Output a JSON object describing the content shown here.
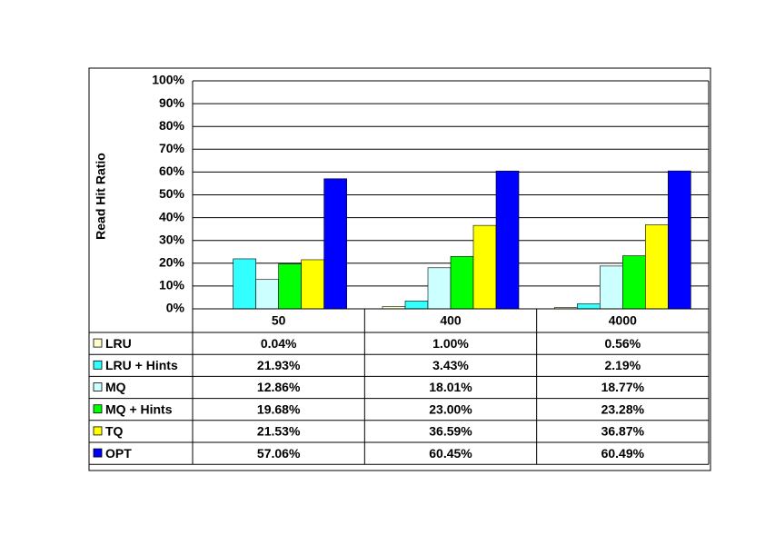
{
  "chart_data": {
    "type": "bar",
    "y_label": "Read Hit Ratio",
    "categories": [
      "50",
      "400",
      "4000"
    ],
    "ylim": [
      0,
      100
    ],
    "yticks": [
      {
        "value": 0,
        "label": "0%"
      },
      {
        "value": 10,
        "label": "10%"
      },
      {
        "value": 20,
        "label": "20%"
      },
      {
        "value": 30,
        "label": "30%"
      },
      {
        "value": 40,
        "label": "40%"
      },
      {
        "value": 50,
        "label": "50%"
      },
      {
        "value": 60,
        "label": "60%"
      },
      {
        "value": 70,
        "label": "70%"
      },
      {
        "value": 80,
        "label": "80%"
      },
      {
        "value": 90,
        "label": "90%"
      },
      {
        "value": 100,
        "label": "100%"
      }
    ],
    "grid": true,
    "series": [
      {
        "name": "LRU",
        "color": "#ffffcc",
        "values": [
          0.04,
          1.0,
          0.56
        ],
        "value_labels": [
          "0.04%",
          "1.00%",
          "0.56%"
        ]
      },
      {
        "name": "LRU + Hints",
        "color": "#33ffff",
        "values": [
          21.93,
          3.43,
          2.19
        ],
        "value_labels": [
          "21.93%",
          "3.43%",
          "2.19%"
        ]
      },
      {
        "name": "MQ",
        "color": "#ccffff",
        "values": [
          12.86,
          18.01,
          18.77
        ],
        "value_labels": [
          "12.86%",
          "18.01%",
          "18.77%"
        ]
      },
      {
        "name": "MQ + Hints",
        "color": "#00ff00",
        "values": [
          19.68,
          23.0,
          23.28
        ],
        "value_labels": [
          "19.68%",
          "23.00%",
          "23.28%"
        ]
      },
      {
        "name": "TQ",
        "color": "#ffff00",
        "values": [
          21.53,
          36.59,
          36.87
        ],
        "value_labels": [
          "21.53%",
          "36.59%",
          "36.87%"
        ]
      },
      {
        "name": "OPT",
        "color": "#0000ff",
        "values": [
          57.06,
          60.45,
          60.49
        ],
        "value_labels": [
          "57.06%",
          "60.45%",
          "60.49%"
        ]
      }
    ]
  }
}
